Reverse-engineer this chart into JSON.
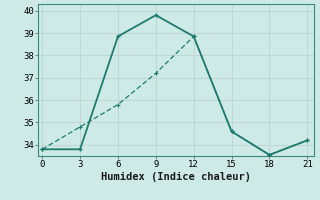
{
  "xlabel": "Humidex (Indice chaleur)",
  "x": [
    0,
    3,
    6,
    9,
    12,
    15,
    18,
    21
  ],
  "line1_y": [
    33.8,
    33.8,
    38.85,
    39.8,
    38.85,
    34.6,
    33.55,
    34.2
  ],
  "line2_y": [
    33.8,
    34.8,
    35.8,
    37.2,
    38.85,
    34.6,
    33.55,
    34.2
  ],
  "line_color": "#1f7a6e",
  "bg_color": "#ceeae6",
  "grid_color": "#c0d8d4",
  "ylim": [
    33.5,
    40.3
  ],
  "xlim": [
    -0.3,
    21.5
  ],
  "yticks": [
    34,
    35,
    36,
    37,
    38,
    39,
    40
  ],
  "xticks": [
    0,
    3,
    6,
    9,
    12,
    15,
    18,
    21
  ],
  "tick_fontsize": 6.5,
  "xlabel_fontsize": 7.5
}
